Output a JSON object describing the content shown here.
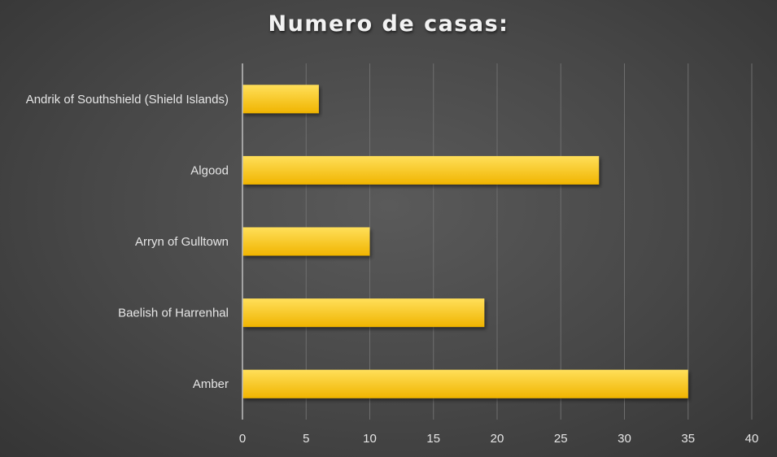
{
  "chart_data": {
    "type": "bar",
    "orientation": "horizontal",
    "title": "Numero de casas:",
    "categories": [
      "Andrik of Southshield (Shield Islands)",
      "Algood",
      "Arryn of Gulltown",
      "Baelish of Harrenhal",
      "Amber"
    ],
    "values": [
      6,
      28,
      10,
      19,
      35
    ],
    "xlim": [
      0,
      40
    ],
    "xticks": [
      0,
      5,
      10,
      15,
      20,
      25,
      30,
      35,
      40
    ],
    "grid": true,
    "bar_color": "#ffc000"
  }
}
